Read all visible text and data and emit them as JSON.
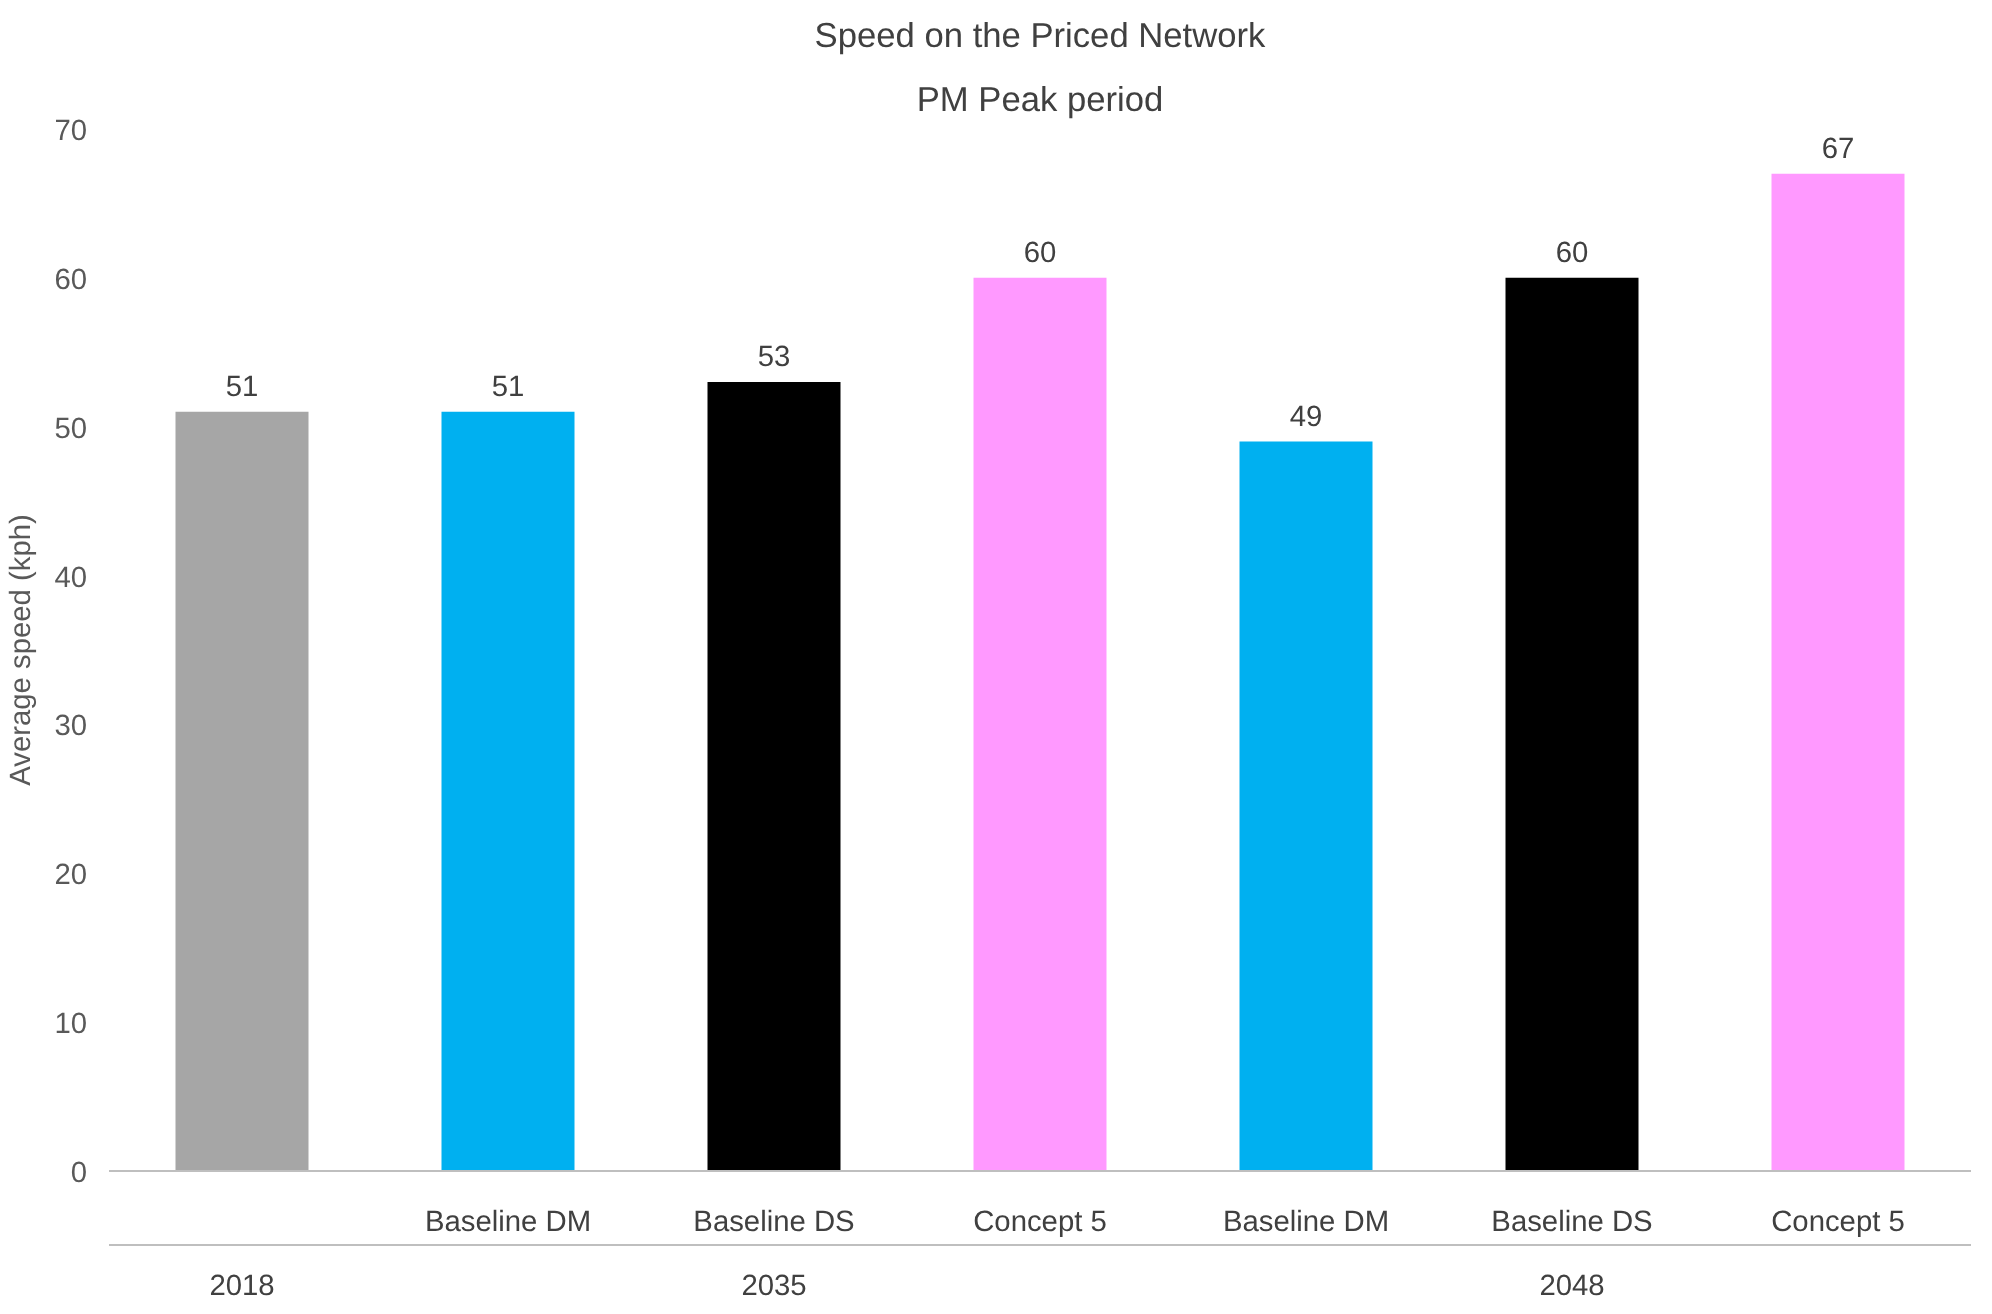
{
  "chart_data": {
    "type": "bar",
    "title": "Speed on the Priced Network",
    "subtitle": "PM Peak period",
    "ylabel": "Average speed (kph)",
    "categories": [
      null,
      "Baseline DM",
      "Baseline DS",
      "Concept 5",
      "Baseline DM",
      "Baseline DS",
      "Concept 5"
    ],
    "values": [
      51,
      51,
      53,
      60,
      49,
      60,
      67
    ],
    "colors": [
      "#a6a6a6",
      "#00b0f0",
      "#000000",
      "#ff99ff",
      "#00b0f0",
      "#000000",
      "#ff99ff"
    ],
    "data_labels": true,
    "annotations": [
      "2018",
      "2035",
      "2048"
    ],
    "ylim": [
      0,
      70
    ],
    "yticks": [
      0,
      10,
      20,
      30,
      40,
      50,
      60,
      70
    ],
    "grid": false
  }
}
